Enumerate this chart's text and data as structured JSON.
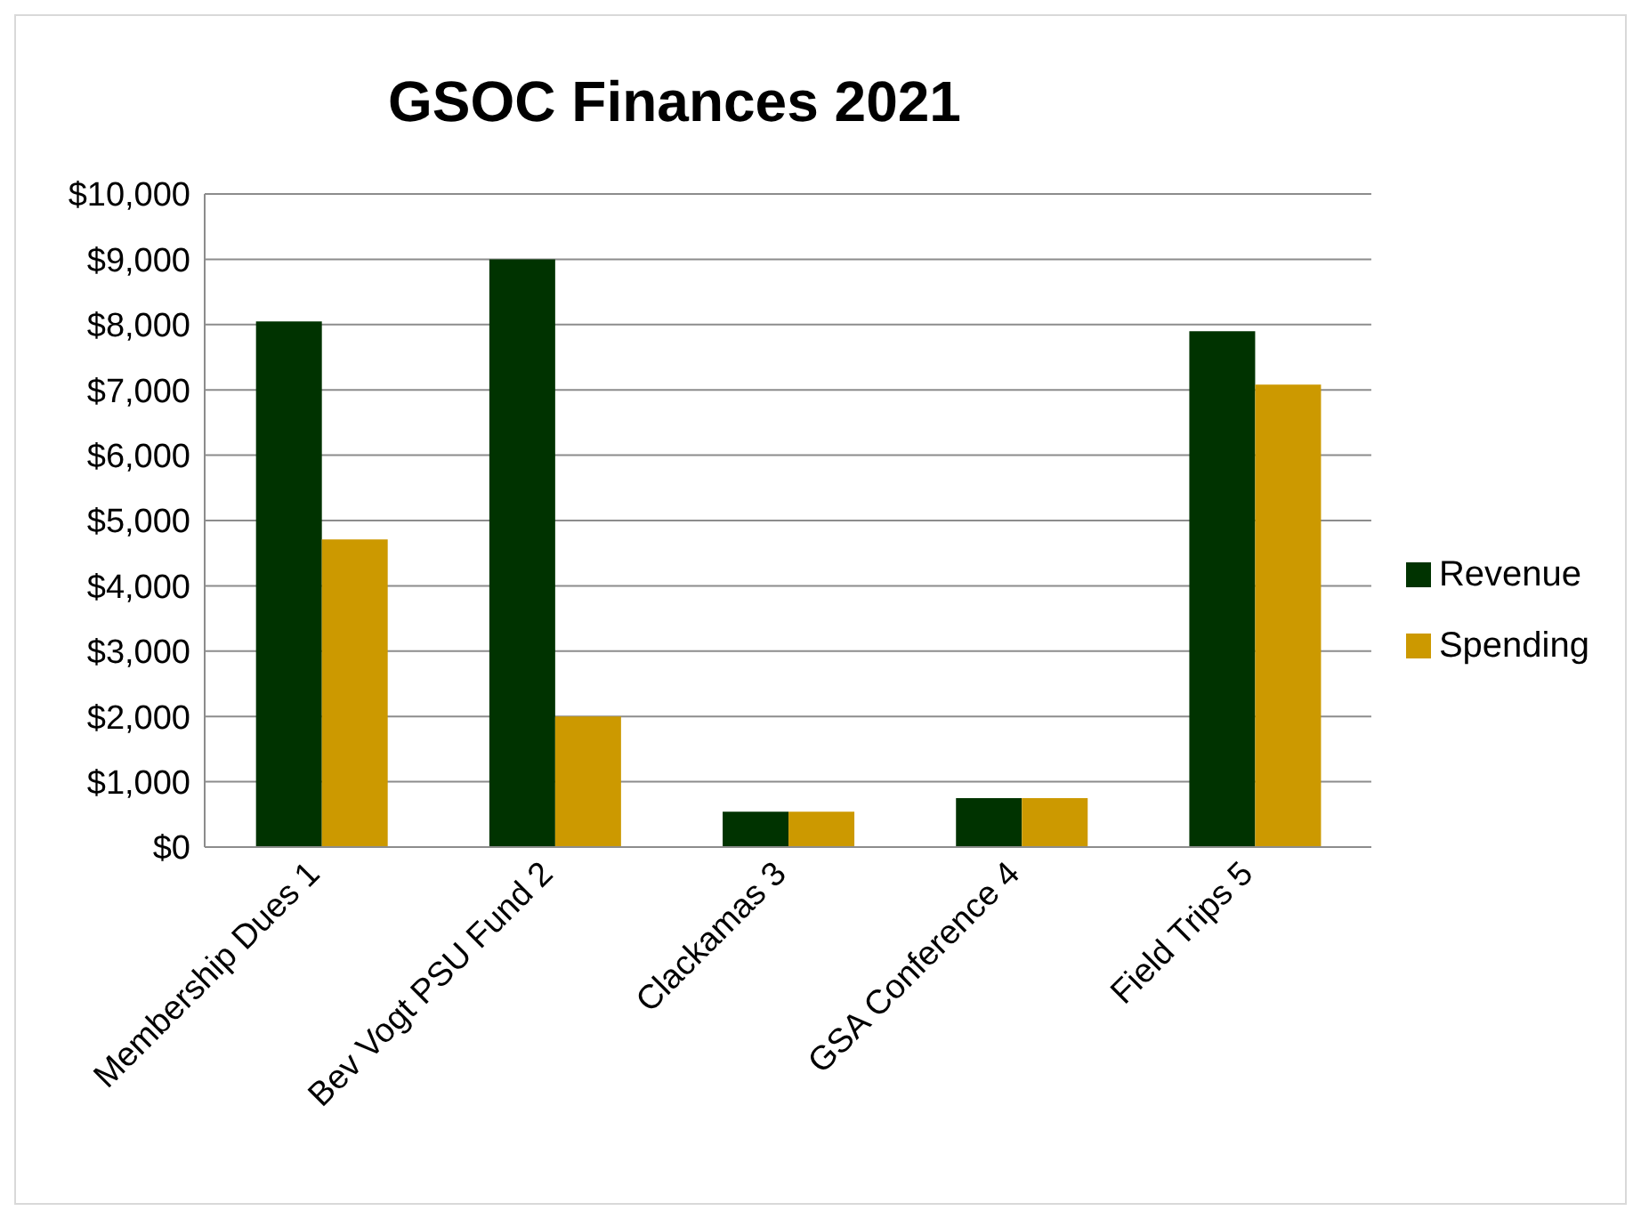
{
  "chart_data": {
    "type": "bar",
    "title": "GSOC Finances 2021",
    "categories": [
      "Membership Dues 1",
      "Bev Vogt PSU Fund 2",
      "Clackamas 3",
      "GSA Conference 4",
      "Field Trips 5"
    ],
    "series": [
      {
        "name": "Revenue",
        "color": "#003300",
        "values": [
          8050,
          9000,
          540,
          750,
          7900
        ]
      },
      {
        "name": "Spending",
        "color": "#cc9900",
        "values": [
          4710,
          2000,
          540,
          750,
          7080
        ]
      }
    ],
    "ylim": [
      0,
      10000
    ],
    "yticks": [
      {
        "value": 0,
        "label": "$0"
      },
      {
        "value": 1000,
        "label": "$1,000"
      },
      {
        "value": 2000,
        "label": "$2,000"
      },
      {
        "value": 3000,
        "label": "$3,000"
      },
      {
        "value": 4000,
        "label": "$4,000"
      },
      {
        "value": 5000,
        "label": "$5,000"
      },
      {
        "value": 6000,
        "label": "$6,000"
      },
      {
        "value": 7000,
        "label": "$7,000"
      },
      {
        "value": 8000,
        "label": "$8,000"
      },
      {
        "value": 9000,
        "label": "$9,000"
      },
      {
        "value": 10000,
        "label": "$10,000"
      }
    ],
    "grid": "y",
    "legend": "right"
  }
}
